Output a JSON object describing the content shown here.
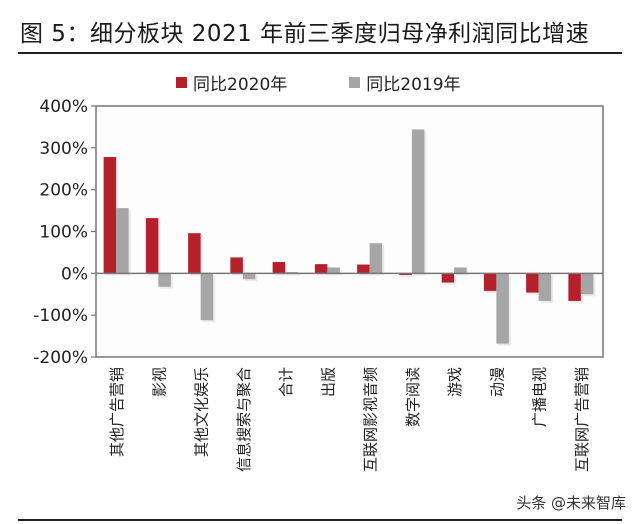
{
  "title": "图 5：细分板块 2021 年前三季度归母净利润同比增速",
  "watermark": "头条 @未来智库",
  "colors": {
    "series1": "#b5212a",
    "series2": "#a6a6a6",
    "axis": "#777777"
  },
  "chart_data": {
    "type": "bar",
    "title": "图 5：细分板块 2021 年前三季度归母净利润同比增速",
    "xlabel": "",
    "ylabel": "",
    "ylim": [
      -200,
      400
    ],
    "yticks": [
      400,
      300,
      200,
      100,
      0,
      -100,
      -200
    ],
    "ytick_labels": [
      "400%",
      "300%",
      "200%",
      "100%",
      "0%",
      "-100%",
      "-200%"
    ],
    "legend_position": "top",
    "grid": false,
    "categories": [
      "其他广告营销",
      "影视",
      "其他文化娱乐",
      "信息搜索与聚合",
      "合计",
      "出版",
      "互联网影视音频",
      "数字阅读",
      "游戏",
      "动漫",
      "广播电视",
      "互联网广告营销"
    ],
    "series": [
      {
        "name": "同比2020年",
        "values": [
          278,
          132,
          96,
          38,
          27,
          22,
          21,
          -4,
          -22,
          -42,
          -46,
          -66
        ]
      },
      {
        "name": "同比2019年",
        "values": [
          156,
          -32,
          -112,
          -14,
          3,
          14,
          72,
          344,
          14,
          -168,
          -66,
          -50
        ]
      }
    ]
  }
}
